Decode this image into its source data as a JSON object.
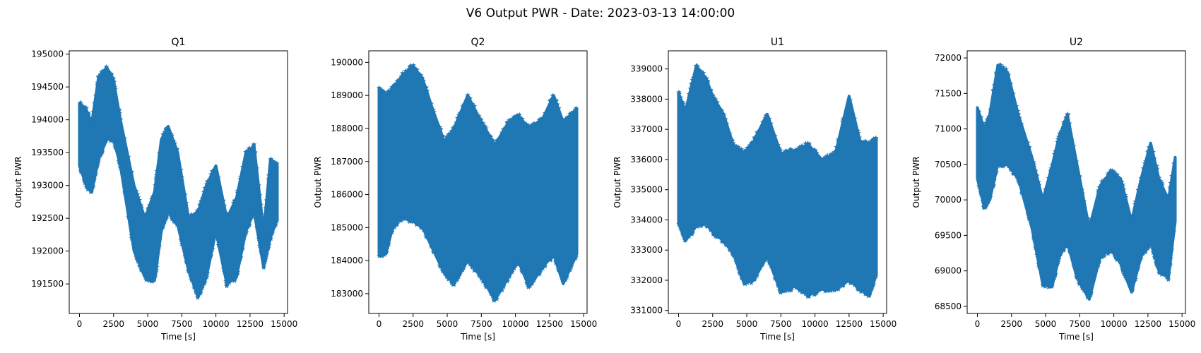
{
  "figure": {
    "suptitle": "V6 Output PWR - Date: 2023-03-13 14:00:00"
  },
  "chart_data": [
    {
      "type": "scatter",
      "title": "Q1",
      "xlabel": "Time [s]",
      "ylabel": "Output PWR",
      "marker": "star",
      "color": "#1f77b4",
      "xlim": [
        -750,
        15250
      ],
      "ylim": [
        191050,
        195050
      ],
      "xticks": [
        0,
        2500,
        5000,
        7500,
        10000,
        12500,
        15000
      ],
      "xtick_labels": [
        "0",
        "2500",
        "5000",
        "7500",
        "10000",
        "12500",
        "15000"
      ],
      "yticks": [
        191500,
        192000,
        192500,
        193000,
        193500,
        194000,
        194500,
        195000
      ],
      "ytick_labels": [
        "191500",
        "192000",
        "192500",
        "193000",
        "193500",
        "194000",
        "194500",
        "195000"
      ],
      "x": [
        0,
        500,
        900,
        1400,
        2000,
        2500,
        3000,
        4000,
        4800,
        5500,
        6000,
        6500,
        7200,
        8000,
        8700,
        9300,
        10000,
        10800,
        11500,
        12200,
        12800,
        13500,
        14000,
        14500
      ],
      "upper": [
        194250,
        194150,
        193950,
        194650,
        194800,
        194600,
        194000,
        193000,
        192500,
        192900,
        193700,
        193900,
        193500,
        192500,
        192600,
        193000,
        193300,
        192500,
        192800,
        193500,
        193600,
        192300,
        193400,
        193300
      ],
      "lower": [
        193300,
        193000,
        192900,
        193400,
        193700,
        193700,
        193300,
        192000,
        191600,
        191550,
        192300,
        192600,
        192400,
        191700,
        191300,
        191600,
        192300,
        191500,
        191600,
        192300,
        192600,
        191750,
        192200,
        192500
      ]
    },
    {
      "type": "scatter",
      "title": "Q2",
      "xlabel": "Time [s]",
      "ylabel": "Output PWR",
      "marker": "star",
      "color": "#1f77b4",
      "xlim": [
        -750,
        15250
      ],
      "ylim": [
        182400,
        190350
      ],
      "xticks": [
        0,
        2500,
        5000,
        7500,
        10000,
        12500,
        15000
      ],
      "xtick_labels": [
        "0",
        "2500",
        "5000",
        "7500",
        "10000",
        "12500",
        "15000"
      ],
      "yticks": [
        183000,
        184000,
        185000,
        186000,
        187000,
        188000,
        189000,
        190000
      ],
      "ytick_labels": [
        "183000",
        "184000",
        "185000",
        "186000",
        "187000",
        "188000",
        "189000",
        "190000"
      ],
      "x": [
        0,
        500,
        1000,
        1700,
        2500,
        3200,
        4000,
        4800,
        5500,
        6500,
        7500,
        8500,
        9500,
        10200,
        11000,
        12000,
        12800,
        13500,
        14500
      ],
      "upper": [
        189200,
        189000,
        189200,
        189600,
        189900,
        189500,
        188500,
        187600,
        188000,
        189000,
        188200,
        187500,
        188200,
        188400,
        188000,
        188300,
        189000,
        188200,
        188600
      ],
      "lower": [
        184200,
        184200,
        185000,
        185300,
        185200,
        185000,
        184300,
        183600,
        183300,
        184000,
        183500,
        182800,
        183500,
        184000,
        183200,
        183800,
        184200,
        183300,
        184200
      ]
    },
    {
      "type": "scatter",
      "title": "U1",
      "xlabel": "Time [s]",
      "ylabel": "Output PWR",
      "marker": "star",
      "color": "#1f77b4",
      "xlim": [
        -750,
        15250
      ],
      "ylim": [
        330900,
        339600
      ],
      "xticks": [
        0,
        2500,
        5000,
        7500,
        10000,
        12500,
        15000
      ],
      "xtick_labels": [
        "0",
        "2500",
        "5000",
        "7500",
        "10000",
        "12500",
        "15000"
      ],
      "yticks": [
        331000,
        332000,
        333000,
        334000,
        335000,
        336000,
        337000,
        338000,
        339000
      ],
      "ytick_labels": [
        "331000",
        "332000",
        "333000",
        "334000",
        "335000",
        "336000",
        "337000",
        "338000",
        "339000"
      ],
      "x": [
        0,
        500,
        1300,
        2000,
        2500,
        3300,
        4000,
        4800,
        5500,
        6500,
        7500,
        8500,
        9500,
        10500,
        11500,
        12500,
        13300,
        14000,
        14500
      ],
      "upper": [
        338200,
        337600,
        339100,
        338700,
        338100,
        337500,
        336500,
        336200,
        336600,
        337500,
        336200,
        336300,
        336500,
        336000,
        336200,
        338100,
        336600,
        336500,
        336700
      ],
      "lower": [
        333900,
        333300,
        333800,
        333900,
        333600,
        333300,
        332900,
        331900,
        332000,
        332800,
        331600,
        331800,
        331500,
        331700,
        331700,
        332000,
        331700,
        331500,
        332200
      ]
    },
    {
      "type": "scatter",
      "title": "U2",
      "xlabel": "Time [s]",
      "ylabel": "Output PWR",
      "marker": "star",
      "color": "#1f77b4",
      "xlim": [
        -750,
        15250
      ],
      "ylim": [
        68400,
        72100
      ],
      "xticks": [
        0,
        2500,
        5000,
        7500,
        10000,
        12500,
        15000
      ],
      "xtick_labels": [
        "0",
        "2500",
        "5000",
        "7500",
        "10000",
        "12500",
        "15000"
      ],
      "yticks": [
        68500,
        69000,
        69500,
        70000,
        70500,
        71000,
        71500,
        72000
      ],
      "ytick_labels": [
        "68500",
        "69000",
        "69500",
        "70000",
        "70500",
        "71000",
        "71500",
        "72000"
      ],
      "x": [
        0,
        500,
        900,
        1500,
        2200,
        3000,
        4000,
        4800,
        5500,
        6000,
        6600,
        7300,
        8200,
        9000,
        9800,
        10500,
        11300,
        12000,
        12700,
        13300,
        14000,
        14500
      ],
      "upper": [
        71300,
        71000,
        71200,
        71900,
        71800,
        71200,
        70600,
        70000,
        70500,
        70900,
        71200,
        70500,
        69600,
        70200,
        70400,
        70300,
        69700,
        70300,
        70800,
        70300,
        70000,
        70600
      ],
      "lower": [
        70300,
        69900,
        70000,
        70500,
        70500,
        70300,
        69600,
        68800,
        68800,
        69200,
        69400,
        68900,
        68600,
        69200,
        69300,
        69100,
        68700,
        69200,
        69400,
        69000,
        68900,
        69700
      ]
    }
  ]
}
